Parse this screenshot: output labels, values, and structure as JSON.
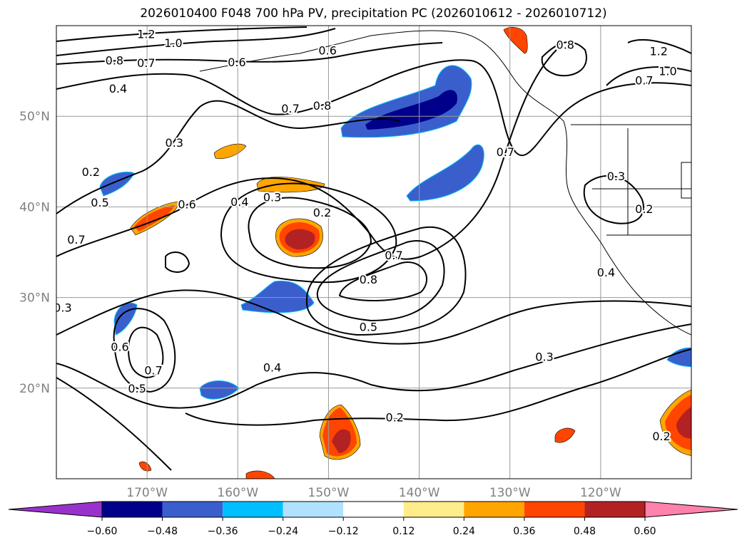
{
  "chart_data": {
    "type": "map",
    "title": "2026010400 F048 700 hPa PV, precipitation PC (2026010612 - 2026010712)",
    "extent": {
      "lon": [
        -180,
        -110
      ],
      "lat": [
        10,
        60
      ]
    },
    "lon_ticks": [
      {
        "lon": -170,
        "label": "170°W"
      },
      {
        "lon": -160,
        "label": "160°W"
      },
      {
        "lon": -150,
        "label": "150°W"
      },
      {
        "lon": -140,
        "label": "140°W"
      },
      {
        "lon": -130,
        "label": "130°W"
      },
      {
        "lon": -120,
        "label": "120°W"
      }
    ],
    "lat_ticks": [
      {
        "lat": 50,
        "label": "50°N"
      },
      {
        "lat": 40,
        "label": "40°N"
      },
      {
        "lat": 30,
        "label": "30°N"
      },
      {
        "lat": 20,
        "label": "20°N"
      }
    ],
    "grid": true,
    "contour_field": "700 hPa PV",
    "contour_labels": [
      {
        "v": "1.2",
        "lon": -170.1,
        "lat": 59.1
      },
      {
        "v": "1.0",
        "lon": -167.1,
        "lat": 58.1
      },
      {
        "v": "0.8",
        "lon": -173.6,
        "lat": 56.2
      },
      {
        "v": "0.7",
        "lon": -170.1,
        "lat": 55.9
      },
      {
        "v": "0.6",
        "lon": -160.1,
        "lat": 56.0
      },
      {
        "v": "0.6",
        "lon": -150.1,
        "lat": 57.3
      },
      {
        "v": "0.4",
        "lon": -173.2,
        "lat": 53.1
      },
      {
        "v": "0.7",
        "lon": -154.2,
        "lat": 50.9
      },
      {
        "v": "0.8",
        "lon": -150.7,
        "lat": 51.2
      },
      {
        "v": "0.3",
        "lon": -167.0,
        "lat": 47.1
      },
      {
        "v": "0.2",
        "lon": -176.2,
        "lat": 43.9
      },
      {
        "v": "0.5",
        "lon": -175.2,
        "lat": 40.5
      },
      {
        "v": "0.6",
        "lon": -165.6,
        "lat": 40.3
      },
      {
        "v": "0.4",
        "lon": -159.8,
        "lat": 40.6
      },
      {
        "v": "0.3",
        "lon": -156.2,
        "lat": 41.1
      },
      {
        "v": "0.2",
        "lon": -150.7,
        "lat": 39.4
      },
      {
        "v": "0.7",
        "lon": -177.8,
        "lat": 36.4
      },
      {
        "v": "0.7",
        "lon": -142.8,
        "lat": 34.7
      },
      {
        "v": "0.8",
        "lon": -145.6,
        "lat": 32.0
      },
      {
        "v": "0.5",
        "lon": -145.6,
        "lat": 26.8
      },
      {
        "v": "0.3",
        "lon": -179.3,
        "lat": 28.9
      },
      {
        "v": "0.6",
        "lon": -173.0,
        "lat": 24.6
      },
      {
        "v": "0.7",
        "lon": -169.3,
        "lat": 22.0
      },
      {
        "v": "0.5",
        "lon": -171.1,
        "lat": 20.0
      },
      {
        "v": "0.4",
        "lon": -156.2,
        "lat": 22.3
      },
      {
        "v": "0.3",
        "lon": -126.2,
        "lat": 23.5
      },
      {
        "v": "0.2",
        "lon": -142.7,
        "lat": 16.8
      },
      {
        "v": "0.2",
        "lon": -113.3,
        "lat": 14.7
      },
      {
        "v": "0.8",
        "lon": -123.9,
        "lat": 57.9
      },
      {
        "v": "0.7",
        "lon": -130.5,
        "lat": 46.1
      },
      {
        "v": "1.2",
        "lon": -113.6,
        "lat": 57.2
      },
      {
        "v": "1.0",
        "lon": -112.6,
        "lat": 55.0
      },
      {
        "v": "0.7",
        "lon": -115.2,
        "lat": 54.0
      },
      {
        "v": "0.3",
        "lon": -118.3,
        "lat": 43.4
      },
      {
        "v": "0.2",
        "lon": -115.2,
        "lat": 39.8
      },
      {
        "v": "0.4",
        "lon": -119.4,
        "lat": 32.8
      }
    ],
    "colorbar": {
      "label": "precipitation PC",
      "ticks": [
        "−0.60",
        "−0.48",
        "−0.36",
        "−0.24",
        "−0.12",
        "0.12",
        "0.24",
        "0.36",
        "0.48",
        "0.60"
      ],
      "colors": [
        "#9932cc",
        "#00008b",
        "#3a5fcd",
        "#00bfff",
        "#b0e2ff",
        "#ffffff",
        "#ffec8b",
        "#ffa500",
        "#ff4500",
        "#b22222",
        "#ff82ab"
      ],
      "extend": "both"
    }
  }
}
